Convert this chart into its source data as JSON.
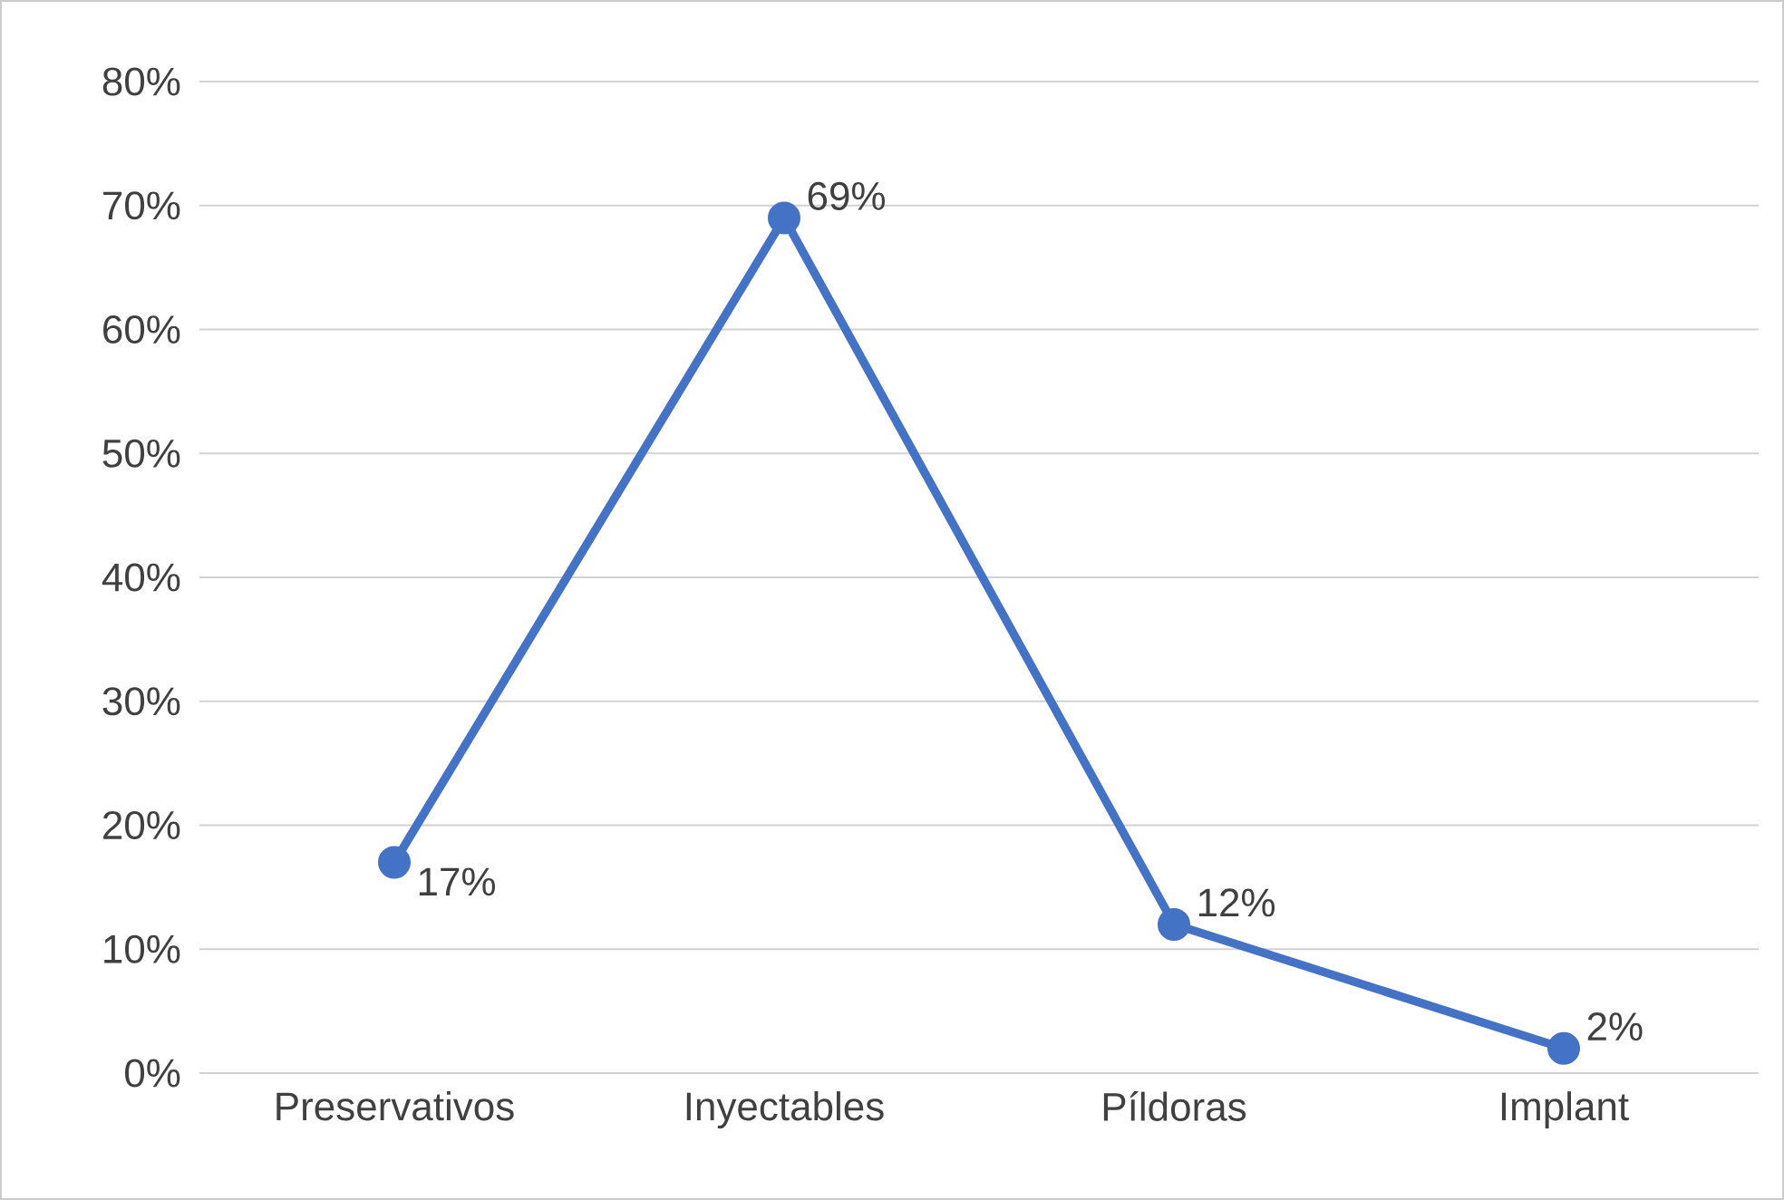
{
  "chart_data": {
    "type": "line",
    "categories": [
      "Preservativos",
      "Inyectables",
      "Píldoras",
      "Implant"
    ],
    "series": [
      {
        "color": "#4472c4",
        "values": [
          17,
          69,
          12,
          2
        ],
        "value_labels": [
          "17%",
          "69%",
          "12%",
          "2%"
        ]
      }
    ],
    "ylim": [
      0,
      80
    ],
    "yticks": [
      {
        "value": 0,
        "label": "0%"
      },
      {
        "value": 10,
        "label": "10%"
      },
      {
        "value": 20,
        "label": "20%"
      },
      {
        "value": 30,
        "label": "30%"
      },
      {
        "value": 40,
        "label": "40%"
      },
      {
        "value": 50,
        "label": "50%"
      },
      {
        "value": 60,
        "label": "60%"
      },
      {
        "value": 70,
        "label": "70%"
      },
      {
        "value": 80,
        "label": "80%"
      }
    ],
    "grid": "y",
    "marker": "circle",
    "line_style": "solid"
  }
}
